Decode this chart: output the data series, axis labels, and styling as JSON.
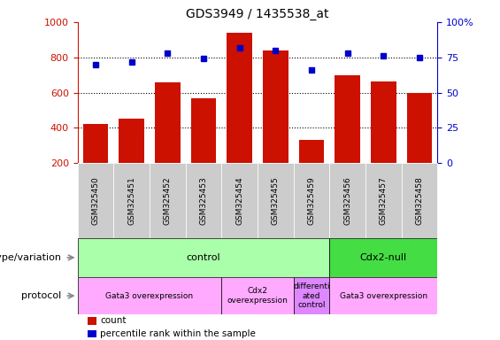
{
  "title": "GDS3949 / 1435538_at",
  "samples": [
    "GSM325450",
    "GSM325451",
    "GSM325452",
    "GSM325453",
    "GSM325454",
    "GSM325455",
    "GSM325459",
    "GSM325456",
    "GSM325457",
    "GSM325458"
  ],
  "counts": [
    420,
    455,
    660,
    570,
    940,
    840,
    330,
    700,
    665,
    600
  ],
  "percentiles": [
    70,
    72,
    78,
    74,
    82,
    80,
    66,
    78,
    76,
    75
  ],
  "ylim_left": [
    200,
    1000
  ],
  "ylim_right": [
    0,
    100
  ],
  "yticks_left": [
    200,
    400,
    600,
    800,
    1000
  ],
  "yticks_right": [
    0,
    25,
    50,
    75,
    100
  ],
  "bar_color": "#cc1100",
  "dot_color": "#0000cc",
  "background_color": "#ffffff",
  "ticklabel_bg": "#cccccc",
  "genotype_row": [
    {
      "label": "control",
      "start": 0,
      "end": 7,
      "color": "#aaffaa"
    },
    {
      "label": "Cdx2-null",
      "start": 7,
      "end": 10,
      "color": "#44dd44"
    }
  ],
  "protocol_row": [
    {
      "label": "Gata3 overexpression",
      "start": 0,
      "end": 4,
      "color": "#ffaaff"
    },
    {
      "label": "Cdx2\noverexpression",
      "start": 4,
      "end": 6,
      "color": "#ffaaff"
    },
    {
      "label": "differenti\nated\ncontrol",
      "start": 6,
      "end": 7,
      "color": "#dd88ff"
    },
    {
      "label": "Gata3 overexpression",
      "start": 7,
      "end": 10,
      "color": "#ffaaff"
    }
  ],
  "legend_items": [
    {
      "label": "count",
      "color": "#cc1100"
    },
    {
      "label": "percentile rank within the sample",
      "color": "#0000cc"
    }
  ],
  "geno_label": "genotype/variation",
  "prot_label": "protocol"
}
